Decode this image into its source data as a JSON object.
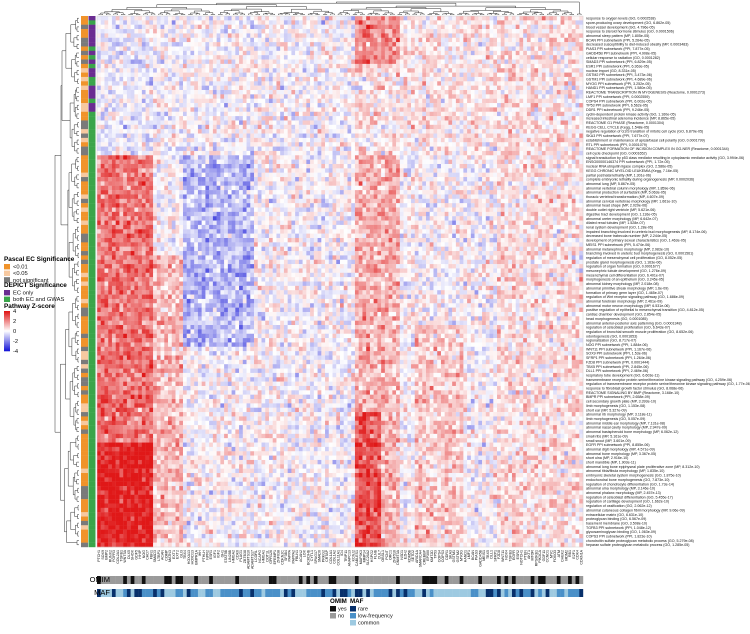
{
  "chart_data": {
    "type": "heatmap",
    "title": "",
    "xlabel": "",
    "ylabel": "",
    "legend_placement": "left",
    "color_scale": {
      "title": "Pathway Z-score",
      "ticks": [
        "4",
        "2",
        "0",
        "-2",
        "-4"
      ],
      "range": [
        -4,
        4
      ],
      "low_color": "#1a1ad8",
      "mid_color": "#ffffff",
      "high_color": "#e01818"
    },
    "row_annotations": {
      "pascal": {
        "title": "Pascal EC Significance",
        "items": [
          {
            "label": "<0.01",
            "color": "#f0932b"
          },
          {
            "label": "<0.05",
            "color": "#f7c9a0"
          },
          {
            "label": "not significant",
            "color": "#7a7a7a"
          }
        ]
      },
      "depict": {
        "title": "DEPICT Significance",
        "items": [
          {
            "label": "EC only",
            "color": "#6a2c91"
          },
          {
            "label": "both EC and GWAS",
            "color": "#3aa54a"
          }
        ]
      }
    },
    "column_annotations": {
      "omim": {
        "label": "OMIM",
        "legend_title": "OMIM",
        "items": [
          {
            "label": "yes",
            "color": "#111111"
          },
          {
            "label": "no",
            "color": "#9a9a9a"
          }
        ]
      },
      "maf": {
        "label": "MAF",
        "legend_title": "MAF",
        "items": [
          {
            "label": "rare",
            "color": "#08306b"
          },
          {
            "label": "low-frequency",
            "color": "#4a90c8"
          },
          {
            "label": "common",
            "color": "#9ecae1"
          }
        ]
      }
    },
    "row_labels": [
      "response to oxygen levels (GO, 0.0002538)",
      "spore-producing ovary development (GO, 6.862e-05)",
      "blood vessel development (GO, 4.796e-05)",
      "response to steroid hormone stimulus (GO, 0.0001506)",
      "abnormal sleep pattern (MP, 1.805e-05)",
      "BCAN PPI subnetwork (PPI, 5.264e-05)",
      "decreased susceptibility to diet-induced obesity (MP, 0.0003483)",
      "PIAS3 PPI subnetwork (PPI, 7.877e-05)",
      "GADD45B PPI subnetwork (PPI, 4.908e-05)",
      "cellular response to radiation (GO, 0.0001282)",
      "SMAD3 PPI subnetwork (PPI, 6.829e-05)",
      "ESR1 PPI subnetwork (PPI, 6.363e-05)",
      "nuclear import (GO, 8.331e-05)",
      "GSTM2 PPI subnetwork (PPI, 3.473e-06)",
      "GSTM1 PPI subnetwork (PPI, 4.689e-06)",
      "MYOG PPI subnetwork (PPI, 3.252e-05)",
      "HAND1 PPI subnetwork (PPI, 1.580e-05)",
      "REACTOME TRANSCRIPTION IN MYOGENESIS (Reactome, 0.0001273)",
      "LMF1 PPI subnetwork (PPI, 0.0002559)",
      "COPS4 PPI subnetwork (PPI, 6.002e-05)",
      "TP53 PPI subnetwork (PPI, 6.562e-05)",
      "DDR1 PPI subnetwork (PPI, 9.246e-05)",
      "cyclin-dependent protein kinase activity (GO, 1.160e-05)",
      "increased intestinal adenoma incidence (MP, 8.865e-05)",
      "REACTOME G1 PHASE (Reactome, 0.0001304)",
      "KEGG CELL CYCLE (Kegg, 1.548e-05)",
      "negative regulation of G1/S transition of mitotic cell cycle (GO, 6.879e-05)",
      "SKA3 PPI subnetwork (PPI, 7.677e-07)",
      "establishment or maintenance of apical/basal cell polarity (GO, 0.0001799)",
      "RTL PPI subnetwork (PPI, 0.0001079)",
      "REACTOME FORMATION OF INCISION COMPLEX IN GG-NER (Reactome, 0.0001344)",
      "cell cycle checkpoint (GO, 0.0001652)",
      "signal transduction by p53 class mediator resulting in cytoplasmic mediator activity (GO, 3.994e-06)",
      "ENSG00000146374 PPI subnetwork (PPI, 1.72e-05)",
      "nuclear RNA ubiquitin ligase complex (GO, 2.586e-05)",
      "KEGG CHRONIC MYELOID LEUKEMIA (Kegg, 7.16e-05)",
      "partial postnatal lethality (MP, 1.301e-06)",
      "complete embryonic lethality during organogenesis (MP, 0.0002036)",
      "abnormal lung (MP, 5.867e-05)",
      "abnormal vertebral column morphology (MP, 1.859e-06)",
      "abnormal production of surfactant (MP, 5.063e-05)",
      "thoracic vertebral transformation (MP, 4.607e-09)",
      "abnormal cervical vertebrae morphology (MP, 1.661e-10)",
      "abnormal head shape (MP, 2.029e-06)",
      "double outlet right ventricle (MP, 5.621e-06)",
      "digestive tract development (GO, 1.116e-05)",
      "abnormal ureter morphology (MP, 6.642e-07)",
      "dilated renal tubules (MP, 1.528e-07)",
      "renal system development (GO, 1.28e-05)",
      "impaired branching involved in ureteric bud morphogenesis (MP, 8.174e-06)",
      "decreased bone trabecula number (MP, 2.244e-05)",
      "development of primary sexual characteristics (GO, 1.463e-05)",
      "MEIS1 PPI subnetwork (PPI, 5.474e-06)",
      "abnormal metanephros morphology (MP, 2.983e-10)",
      "branching involved in ureteric bud morphogenesis (GO, 0.0001561)",
      "regulation of mesenchymal cell proliferation (GO, 8.052e-05)",
      "prostate gland morphogenesis (GO, 1.163e-06)",
      "regulation of organ formation (GO, 0.0001677)",
      "mesonephric tubule development (GO, 1.276e-09)",
      "mesenchymal cell differentiation (GO, 6.401e-07)",
      "morphogenesis of an epithelium (GO, 3.245e-05)",
      "abnormal kidney morphology (MP, 2.018e-08)",
      "abnormal primitive streak morphology (MP, 1.6e-09)",
      "formation of primary germ layer (GO, 1.465e-07)",
      "regulation of Wnt receptor signaling pathway (GO, 1.686e-09)",
      "abnormal forebrain morphology (MP, 2.461e-09)",
      "abnormal motor neuron morphology (MP, 6.531e-06)",
      "positive regulation of epithelial to mesenchymal transition (GO, 4.812e-05)",
      "cardiac chamber development (GO, 2.854e-05)",
      "head morphogenesis (GO, 0.0001085)",
      "abnormal anterior-posterior axis patterning (GO, 0.0001348)",
      "regulation of osteoblast proliferation (GO, 6.643e-07)",
      "regulation of bronchial smooth muscle proliferation (GO, 8.652e-06)",
      "odontogenesis (GO, 0.0001653)",
      "regionalization (GO, 8.717e-07)",
      "NOG PPI subnetwork (PPI, 1.884e-06)",
      "WNT11 PPI subnetwork (PPI, 1.167e-06)",
      "SOX9 PPI subnetwork (PPI, 1.53e-06)",
      "SFRP1 PPI subnetwork (PPI, 1.264e-06)",
      "FZD8 PPI subnetwork (PPI, 0.0001444)",
      "TBX5 PPI subnetwork (PPI, 2.845e-06)",
      "DLL1 PPI subnetwork (PPI, 2.469e-06)",
      "respiratory tube development (GO, 6.603e-11)",
      "transmembrane receptor protein serine/threonine kinase signaling pathway (GO, 4.259e-06)",
      "regulation of transmembrane receptor protein serine/threonine kinase signaling pathway (GO, 1.77e-06)",
      "response to fibroblast growth factor stimulus (GO, 8.068e-06)",
      "REACTOME SIGNALING BY BMP (Reactome, 3.168e-10)",
      "BMPR PPI subnetwork (PPI, 2.658e-09)",
      "cell secondary growth plate (MP, 3.393e-10)",
      "limb morphogenesis (GO, 1.153e-08)",
      "short ear (MP, 5.327e-09)",
      "abnormal rib morphology (MP, 3.118e-11)",
      "limb morphogenesis (GO, 5.057e-09)",
      "abnormal middle ear morphology (MP, 7.131e-08)",
      "abnormal nasal cavity morphology (MP, 2.947e-09)",
      "abnormal basisphenoid bone morphology (MP, 6.062e-12)",
      "small ribs (MP, 5.161e-09)",
      "small snout (MP, 3.601e-09)",
      "EGFR PPI subnetwork (PPI, 8.855e-06)",
      "abnormal digit morphology (MP, 4.571e-09)",
      "abnormal bone morphology (MP, 3.367e-05)",
      "short ulna (MP, 2.916e-10)",
      "short mandible (MP, 1.903e-11)",
      "abnormal long bone epiphyseal plate proliferative zone (MP, 8.312e-10)",
      "abnormal tibia/fibula morphology (MP, 1.835e-10)",
      "embryonic skeletal system morphogenesis (GO, 1.875e-10)",
      "endochondral bone morphogenesis (GO, 7.873e-10)",
      "regulation of chondrocyte differentiation (GO, 1.73e-14)",
      "abnormal ulna morphology (MP, 3.146e-10)",
      "abnormal phalanx morphology (MP, 2.457e-13)",
      "regulation of osteoblast differentiation (GO, 5.455e-17)",
      "regulation of cartilage development (GO, 1.662e-10)",
      "regulation of ossification (GO, 2.062e-12)",
      "abnormal cutaneous collagen fibril morphology (MP, 9.06e-09)",
      "extracellular matrix (GO, 6.631e-10)",
      "proteoglycan binding (GO, 6.567e-09)",
      "basement membrane (GO, 3.508e-10)",
      "TGFB3 PPI subnetwork (PPI, 1.048e-12)",
      "glycosaminoglycan binding (GO, 1.063e-09)",
      "COPS3 PPI subnetwork (PPI, 1.823e-10)",
      "chondroitin sulfate proteoglycan metabolic process (GO, 5.279e-08)",
      "heparan sulfate proteoglycan metabolic process (GO, 1.285e-05)"
    ],
    "column_labels": [
      "PTCH1",
      "SOX9",
      "BMP2",
      "RUNX2",
      "FGFR3",
      "COL2A1",
      "TGFB1",
      "WNT5A",
      "DLX5",
      "SHOX",
      "GDF5",
      "HHIP",
      "NOG",
      "CHD7",
      "FBN1",
      "SMAD3",
      "LTBP1",
      "ACAN",
      "COMP",
      "MATN3",
      "EXT1",
      "EXT2",
      "GLI3",
      "TBX4",
      "HOXA13",
      "HOXD13",
      "BMPR1A",
      "IHH",
      "PTHLH",
      "NPR2",
      "ESR1",
      "IGF1",
      "IGF2",
      "GH1",
      "STAT5B",
      "LIN28B",
      "HMGA2",
      "CDK6",
      "PLAG1",
      "ZBTB38",
      "ADAMTS10",
      "ADAMTS17",
      "LCORL",
      "NCAPG",
      "HMGA1",
      "DOT1L",
      "GPR126",
      "EFEMP1",
      "ZNF638",
      "CDKN2C",
      "SF3B4",
      "PAPPA",
      "PAPPA2",
      "FBLN1",
      "ACAN2",
      "LOX",
      "BCKDHB",
      "CYTL1",
      "SPAG17",
      "SMAD6",
      "PRKG2",
      "CRTAP",
      "COL1A1",
      "COL1A2",
      "COL11A1",
      "ID4",
      "TRIP11",
      "ANAPC13",
      "KCNJ2",
      "CABLES1",
      "MAP3K3",
      "MMP14",
      "SLC26A2",
      "HSPG2",
      "FLNB",
      "CUL7",
      "OBSL1",
      "PCNT",
      "ORC1",
      "ZNF516",
      "DNMT3A",
      "NSD1",
      "EZH2",
      "KDM5B",
      "SETD2",
      "ARID1A",
      "SMARCA4",
      "CREBBP",
      "EP300",
      "KMT2D",
      "TP53",
      "COPS4",
      "COPS3",
      "DDR1",
      "SKA3",
      "GSTM1",
      "GSTM2",
      "MYOG",
      "HAND1",
      "LMF1",
      "BCAN",
      "PIAS3",
      "GADD45B",
      "MEIS1",
      "TBX5",
      "DLL1",
      "SFRP1",
      "FZD8",
      "WNT11",
      "NOX4",
      "TGFB3",
      "EGFR",
      "ESR2",
      "NOTCH1",
      "PTEN",
      "AKT1",
      "MTOR",
      "RPS6KB1",
      "PIK3CA",
      "GDF11",
      "CCND1",
      "MYC",
      "FOXO3",
      "ATM",
      "CHEK2",
      "MDM2",
      "RB1",
      "E2F1",
      "CDK4",
      "CDKN1A"
    ],
    "omim_legend_order": [
      "yes",
      "no"
    ],
    "maf_legend_order": [
      "rare",
      "low-frequency",
      "common"
    ]
  }
}
